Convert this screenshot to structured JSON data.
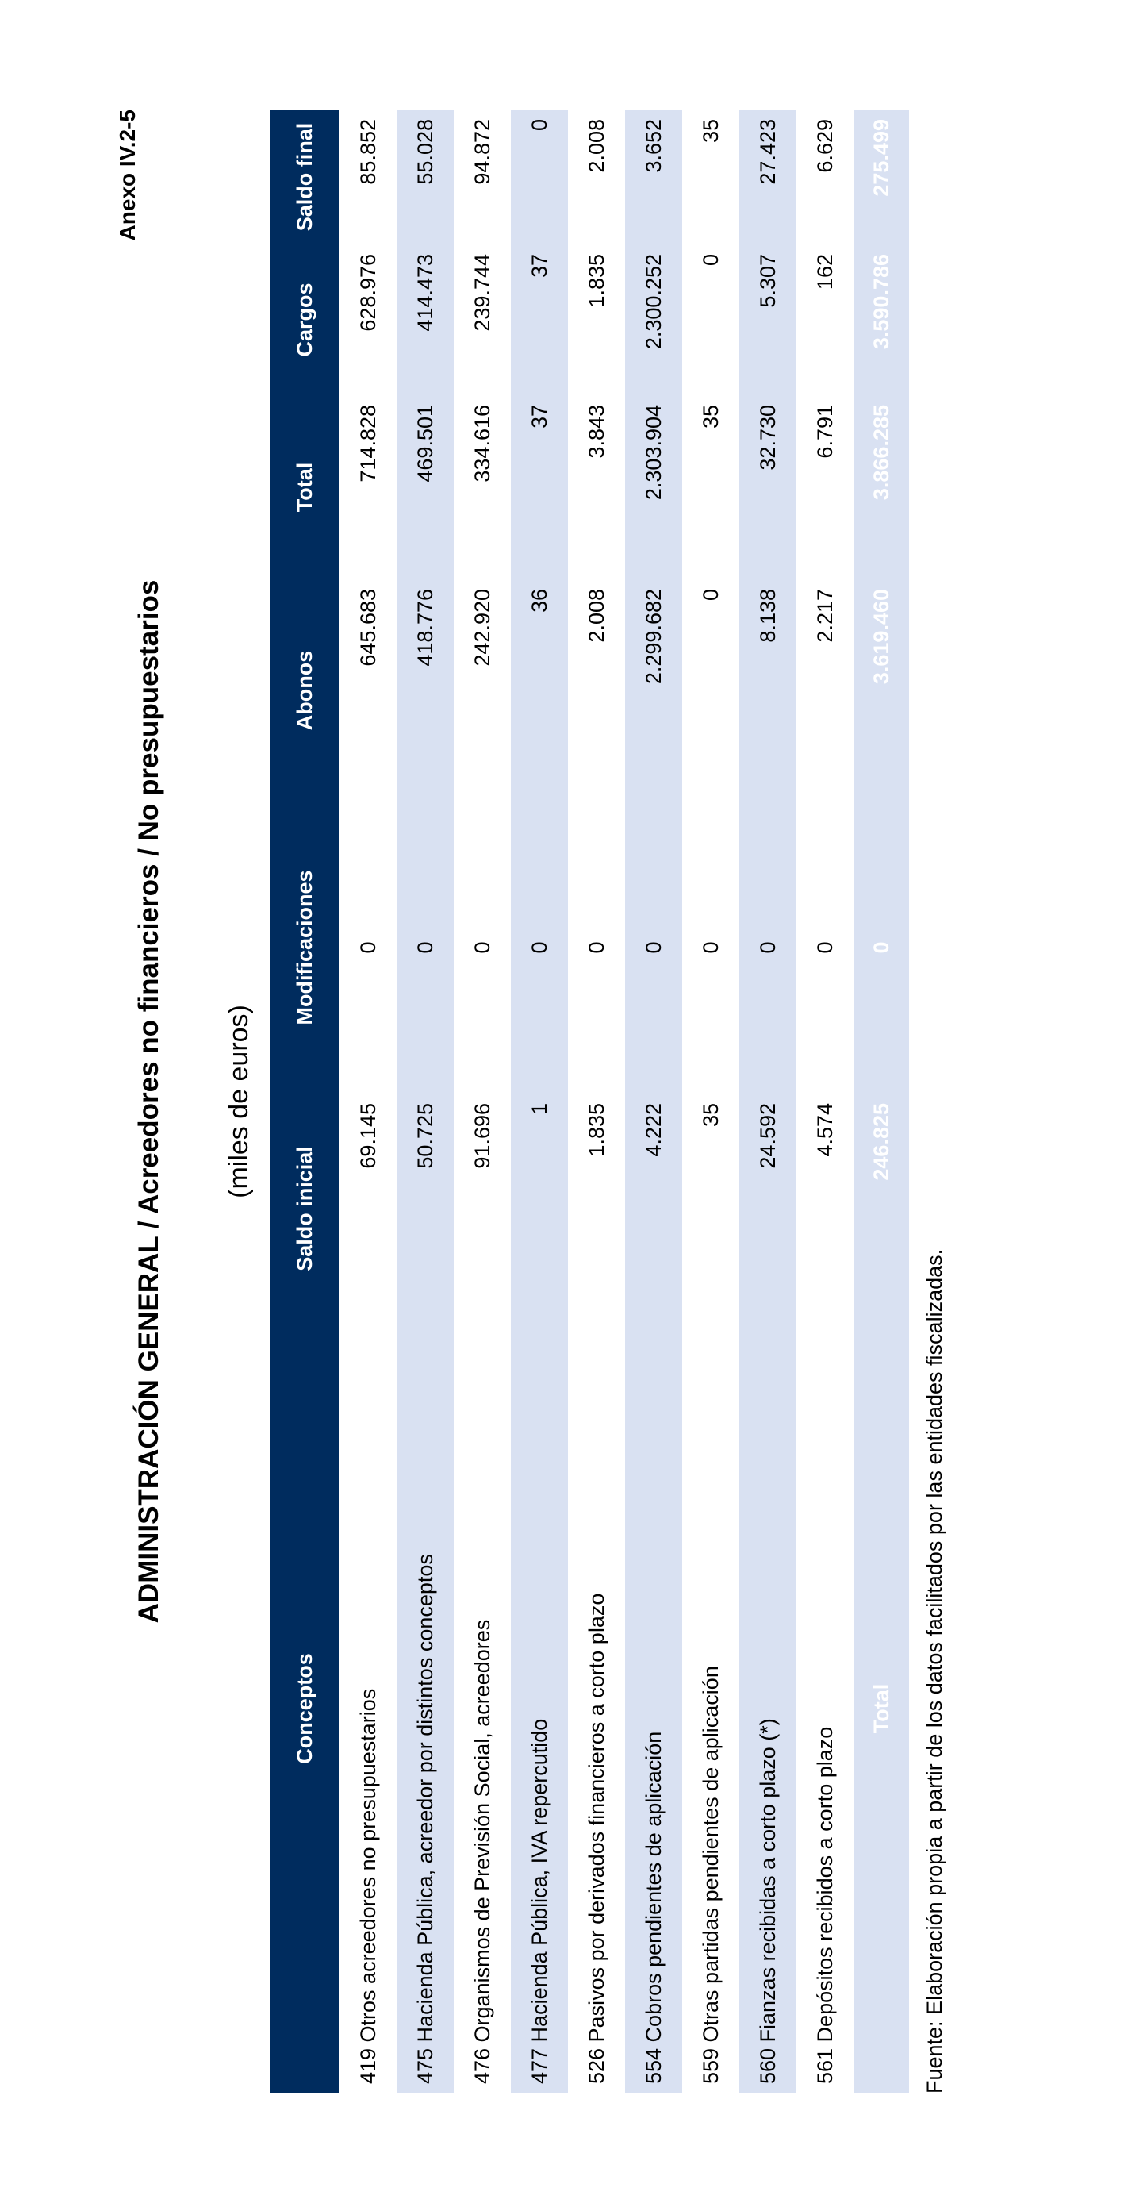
{
  "annex": "Anexo IV.2-5",
  "title": "ADMINISTRACIÓN GENERAL  /  Acreedores no financieros  /  No presupuestarios",
  "subtitle": "(miles de euros)",
  "table": {
    "columns": [
      "Conceptos",
      "Saldo inicial",
      "Modificaciones",
      "Abonos",
      "Total",
      "Cargos",
      "Saldo final"
    ],
    "rows": [
      [
        "419 Otros acreedores no presupuestarios",
        "69.145",
        "0",
        "645.683",
        "714.828",
        "628.976",
        "85.852"
      ],
      [
        "475 Hacienda Pública, acreedor por distintos conceptos",
        "50.725",
        "0",
        "418.776",
        "469.501",
        "414.473",
        "55.028"
      ],
      [
        "476 Organismos de Previsión Social, acreedores",
        "91.696",
        "0",
        "242.920",
        "334.616",
        "239.744",
        "94.872"
      ],
      [
        "477 Hacienda Pública, IVA repercutido",
        "1",
        "0",
        "36",
        "37",
        "37",
        "0"
      ],
      [
        "526 Pasivos por derivados financieros a corto plazo",
        "1.835",
        "0",
        "2.008",
        "3.843",
        "1.835",
        "2.008"
      ],
      [
        "554 Cobros pendientes de aplicación",
        "4.222",
        "0",
        "2.299.682",
        "2.303.904",
        "2.300.252",
        "3.652"
      ],
      [
        "559 Otras partidas pendientes de aplicación",
        "35",
        "0",
        "0",
        "35",
        "0",
        "35"
      ],
      [
        "560 Fianzas recibidas a corto plazo (*)",
        "24.592",
        "0",
        "8.138",
        "32.730",
        "5.307",
        "27.423"
      ],
      [
        "561 Depósitos recibidos a corto plazo",
        "4.574",
        "0",
        "2.217",
        "6.791",
        "162",
        "6.629"
      ]
    ],
    "total": [
      "Total",
      "246.825",
      "0",
      "3.619.460",
      "3.866.285",
      "3.590.786",
      "275.499"
    ]
  },
  "footnote": "Fuente: Elaboración propia a partir de los datos facilitados por las entidades fiscalizadas."
}
